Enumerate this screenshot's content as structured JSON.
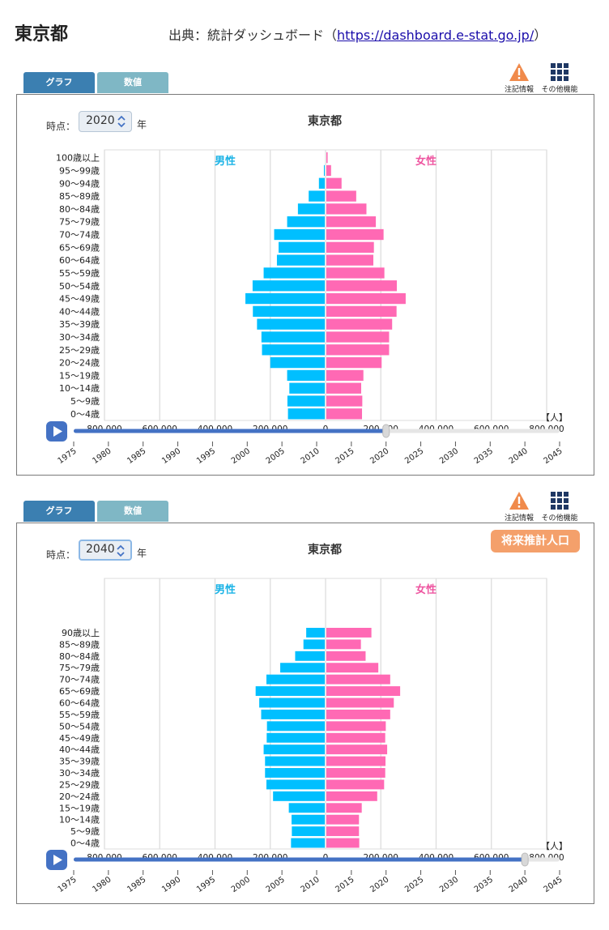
{
  "header": {
    "title": "東京都",
    "source_prefix": "出典：統計ダッシュボード（",
    "source_link": "https://dashboard.e-stat.go.jp/",
    "source_suffix": "）"
  },
  "tabs": {
    "graph": "グラフ",
    "values": "数値"
  },
  "tools": {
    "notes": "注記情報",
    "more": "その他機能"
  },
  "controls": {
    "time_label": "時点：",
    "year_unit": "年",
    "unit_label": "【人】"
  },
  "colors": {
    "male": "#00bfff",
    "female": "#ff69b4",
    "male_label": "#1ab3e6",
    "female_label": "#ee55a0",
    "slider": "#4472c4",
    "badge": "#f4a06b"
  },
  "timeline": {
    "years": [
      "1975",
      "1980",
      "1985",
      "1990",
      "1995",
      "2000",
      "2005",
      "2010",
      "2015",
      "2020",
      "2025",
      "2030",
      "2035",
      "2040",
      "2045"
    ]
  },
  "panels": [
    {
      "selected_year": "2020",
      "badge": "",
      "chart_data": {
        "type": "bar",
        "orientation": "horizontal",
        "title": "東京都",
        "categories": [
          "100歳以上",
          "95～99歳",
          "90～94歳",
          "85～89歳",
          "80～84歳",
          "75～79歳",
          "70～74歳",
          "65～69歳",
          "60～64歳",
          "55～59歳",
          "50～54歳",
          "45～49歳",
          "40～44歳",
          "35～39歳",
          "30～34歳",
          "25～29歳",
          "20～24歳",
          "15～19歳",
          "10～14歳",
          "5～9歳",
          "0～4歳"
        ],
        "series": [
          {
            "name": "男性",
            "values": [
              1500,
              6000,
              24000,
              61000,
              100000,
              139000,
              186000,
              170000,
              176000,
              224000,
              264000,
              290000,
              263000,
              248000,
              232000,
              230000,
              200000,
              139000,
              131000,
              138000,
              136000
            ]
          },
          {
            "name": "女性",
            "values": [
              4500,
              17000,
              55000,
              108000,
              145000,
              179000,
              207000,
              172000,
              170000,
              210000,
              255000,
              287000,
              254000,
              238000,
              227000,
              227000,
              200000,
              134000,
              126000,
              130000,
              129000
            ]
          }
        ],
        "xlim": [
          -800000,
          800000
        ],
        "tick_labels": [
          "800,000",
          "600,000",
          "400,000",
          "200,000",
          "0",
          "200,000",
          "400,000",
          "600,000",
          "800,000"
        ],
        "grid": true
      }
    },
    {
      "selected_year": "2040",
      "badge": "将来推計人口",
      "chart_data": {
        "type": "bar",
        "orientation": "horizontal",
        "title": "東京都",
        "categories": [
          "90歳以上",
          "85～89歳",
          "80～84歳",
          "75～79歳",
          "70～74歳",
          "65～69歳",
          "60～64歳",
          "55～59歳",
          "50～54歳",
          "45～49歳",
          "40～44歳",
          "35～39歳",
          "30～34歳",
          "25～29歳",
          "20～24歳",
          "15～19歳",
          "10～14歳",
          "5～9歳",
          "0～4歳"
        ],
        "series": [
          {
            "name": "男性",
            "values": [
              70000,
              80000,
              110000,
              164000,
              214000,
              253000,
              240000,
              233000,
              212000,
              213000,
              224000,
              219000,
              219000,
              214000,
              190000,
              133000,
              123000,
              122000,
              125000
            ]
          },
          {
            "name": "女性",
            "values": [
              163000,
              125000,
              142000,
              188000,
              231000,
              267000,
              244000,
              231000,
              215000,
              213000,
              220000,
              214000,
              213000,
              209000,
              184000,
              128000,
              118000,
              118000,
              119000
            ]
          }
        ],
        "xlim": [
          -800000,
          800000
        ],
        "tick_labels": [
          "800,000",
          "600,000",
          "400,000",
          "200,000",
          "0",
          "200,000",
          "400,000",
          "600,000",
          "800,000"
        ],
        "grid": true
      }
    }
  ]
}
